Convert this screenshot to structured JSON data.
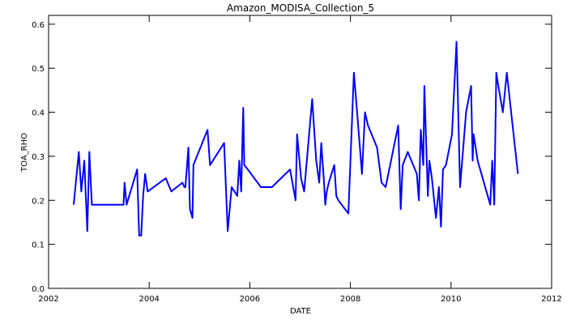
{
  "chart_data": {
    "type": "line",
    "title": "Amazon_MODISA_Collection_5",
    "xlabel": "DATE",
    "ylabel": "TOA_RHO",
    "xlim": [
      2002,
      2012
    ],
    "ylim": [
      0.0,
      0.62
    ],
    "xticks": [
      2002,
      2004,
      2006,
      2008,
      2010,
      2012
    ],
    "xtick_labels": [
      "2002",
      "2004",
      "2006",
      "2008",
      "2010",
      "2012"
    ],
    "yticks": [
      0.0,
      0.1,
      0.2,
      0.3,
      0.4,
      0.5,
      0.6
    ],
    "ytick_labels": [
      "0.0",
      "0.1",
      "0.2",
      "0.3",
      "0.4",
      "0.5",
      "0.6"
    ],
    "grid": false,
    "legend": "none",
    "line_color": "#0000ff",
    "series": [
      {
        "x": [
          2002.5,
          2002.6,
          2002.65,
          2002.71,
          2002.77,
          2002.81,
          2002.86,
          2002.92,
          2003.49,
          2003.51,
          2003.55,
          2003.76,
          2003.8,
          2003.84,
          2003.88,
          2003.92,
          2003.97,
          2004.33,
          2004.44,
          2004.66,
          2004.7,
          2004.72,
          2004.78,
          2004.81,
          2004.86,
          2004.88,
          2005.16,
          2005.21,
          2005.49,
          2005.56,
          2005.64,
          2005.75,
          2005.79,
          2005.83,
          2005.87,
          2005.89,
          2005.96,
          2006.22,
          2006.44,
          2006.8,
          2006.91,
          2006.94,
          2007.02,
          2007.08,
          2007.24,
          2007.32,
          2007.38,
          2007.42,
          2007.47,
          2007.5,
          2007.53,
          2007.57,
          2007.68,
          2007.72,
          2007.76,
          2007.96,
          2008.07,
          2008.14,
          2008.23,
          2008.29,
          2008.35,
          2008.53,
          2008.62,
          2008.7,
          2008.95,
          2009.0,
          2009.04,
          2009.14,
          2009.32,
          2009.36,
          2009.4,
          2009.45,
          2009.47,
          2009.54,
          2009.57,
          2009.62,
          2009.7,
          2009.76,
          2009.8,
          2009.84,
          2009.9,
          2010.02,
          2010.11,
          2010.18,
          2010.3,
          2010.4,
          2010.43,
          2010.45,
          2010.53,
          2010.78,
          2010.82,
          2010.86,
          2010.9,
          2010.94,
          2011.03,
          2011.11,
          2011.33
        ],
        "y": [
          0.19,
          0.31,
          0.22,
          0.29,
          0.13,
          0.31,
          0.19,
          0.19,
          0.19,
          0.24,
          0.19,
          0.27,
          0.12,
          0.12,
          0.21,
          0.26,
          0.22,
          0.25,
          0.22,
          0.24,
          0.23,
          0.23,
          0.32,
          0.18,
          0.16,
          0.28,
          0.36,
          0.28,
          0.33,
          0.13,
          0.23,
          0.21,
          0.29,
          0.22,
          0.41,
          0.28,
          0.27,
          0.23,
          0.23,
          0.27,
          0.2,
          0.35,
          0.25,
          0.22,
          0.43,
          0.29,
          0.24,
          0.33,
          0.25,
          0.19,
          0.22,
          0.24,
          0.28,
          0.21,
          0.2,
          0.17,
          0.49,
          0.39,
          0.26,
          0.4,
          0.37,
          0.32,
          0.24,
          0.23,
          0.37,
          0.18,
          0.28,
          0.31,
          0.26,
          0.2,
          0.36,
          0.28,
          0.46,
          0.21,
          0.29,
          0.25,
          0.16,
          0.23,
          0.14,
          0.27,
          0.28,
          0.35,
          0.56,
          0.23,
          0.4,
          0.46,
          0.29,
          0.35,
          0.29,
          0.19,
          0.29,
          0.19,
          0.49,
          0.46,
          0.4,
          0.49,
          0.26
        ]
      }
    ]
  }
}
